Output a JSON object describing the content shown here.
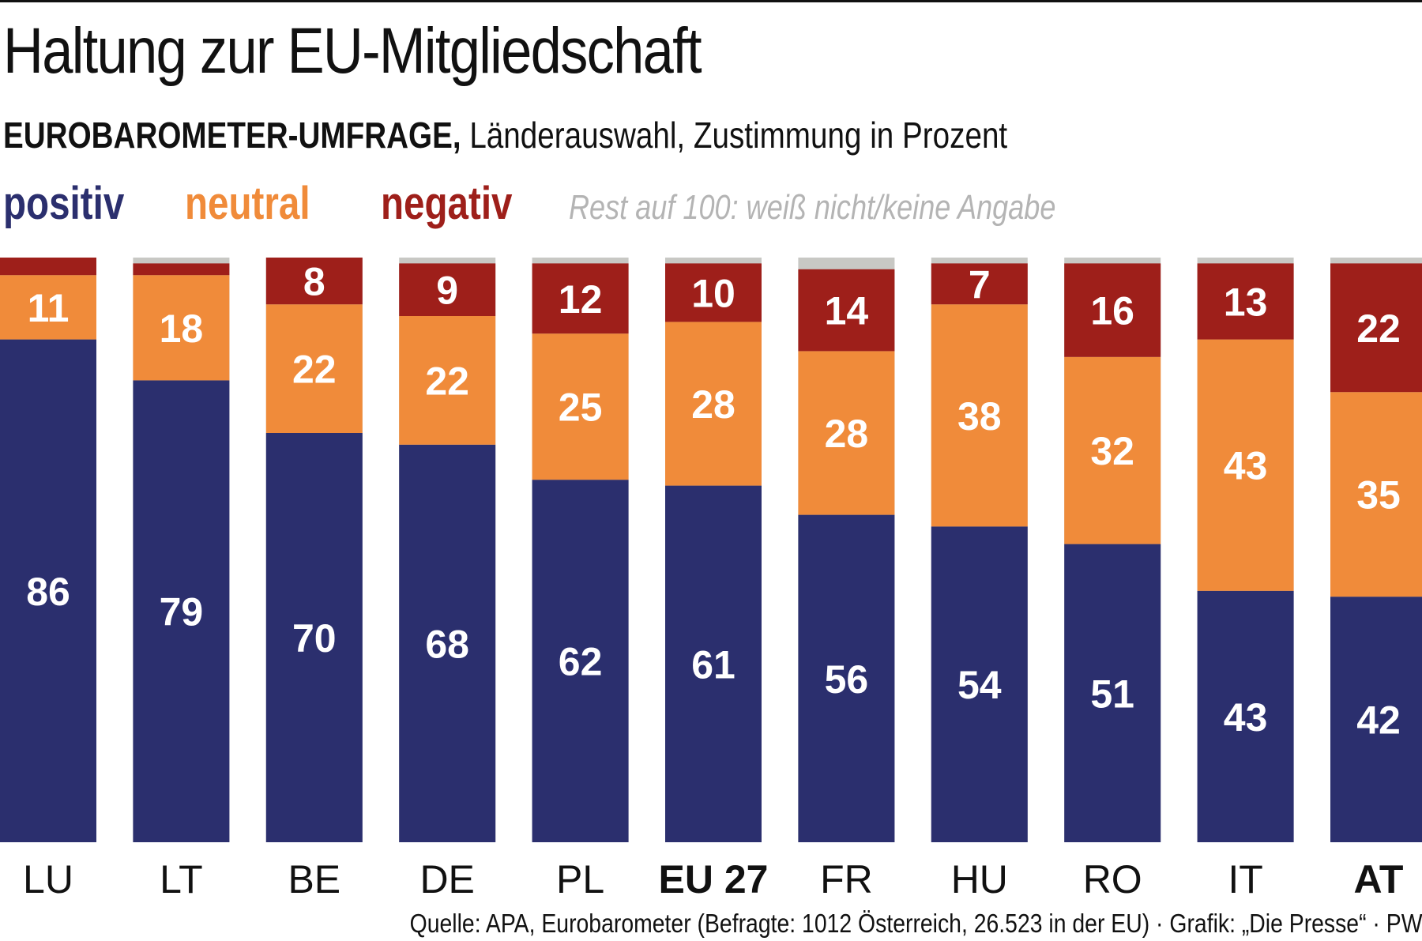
{
  "title": "Haltung zur EU-Mitgliedschaft",
  "subtitle_bold": "EUROBAROMETER-UMFRAGE,",
  "subtitle_rest": " Länderauswahl, Zustimmung in Prozent",
  "legend": {
    "positive": "positiv",
    "neutral": "neutral",
    "negative": "negativ",
    "rest": "Rest auf 100: weiß nicht/keine Angabe"
  },
  "colors": {
    "positive": "#2b2f6e",
    "neutral": "#f08b3a",
    "negative": "#9e1f1a",
    "rest": "#c8c8c4"
  },
  "source": "Quelle: APA, Eurobarometer (Befragte: 1012 Österreich, 26.523 in der EU) · Grafik: „Die Presse“ · PW",
  "chart_data": {
    "type": "bar",
    "stacked": true,
    "categories": [
      "LU",
      "LT",
      "BE",
      "DE",
      "PL",
      "EU 27",
      "FR",
      "HU",
      "RO",
      "IT",
      "AT"
    ],
    "bold_categories": [
      "EU 27",
      "AT"
    ],
    "ylim": [
      0,
      100
    ],
    "series": [
      {
        "name": "positiv",
        "values": [
          86,
          79,
          70,
          68,
          62,
          61,
          56,
          54,
          51,
          43,
          42
        ]
      },
      {
        "name": "neutral",
        "values": [
          11,
          18,
          22,
          22,
          25,
          28,
          28,
          38,
          32,
          43,
          35
        ]
      },
      {
        "name": "negativ",
        "values": [
          3,
          2,
          8,
          9,
          12,
          10,
          14,
          7,
          16,
          13,
          22
        ]
      }
    ],
    "data_labels": {
      "positiv": [
        "86",
        "79",
        "70",
        "68",
        "62",
        "61",
        "56",
        "54",
        "51",
        "43",
        "42"
      ],
      "neutral": [
        "11",
        "18",
        "22",
        "22",
        "25",
        "28",
        "28",
        "38",
        "32",
        "43",
        "35"
      ],
      "negativ": [
        "",
        "",
        "8",
        "9",
        "12",
        "10",
        "14",
        "7",
        "16",
        "13",
        "22"
      ]
    }
  }
}
